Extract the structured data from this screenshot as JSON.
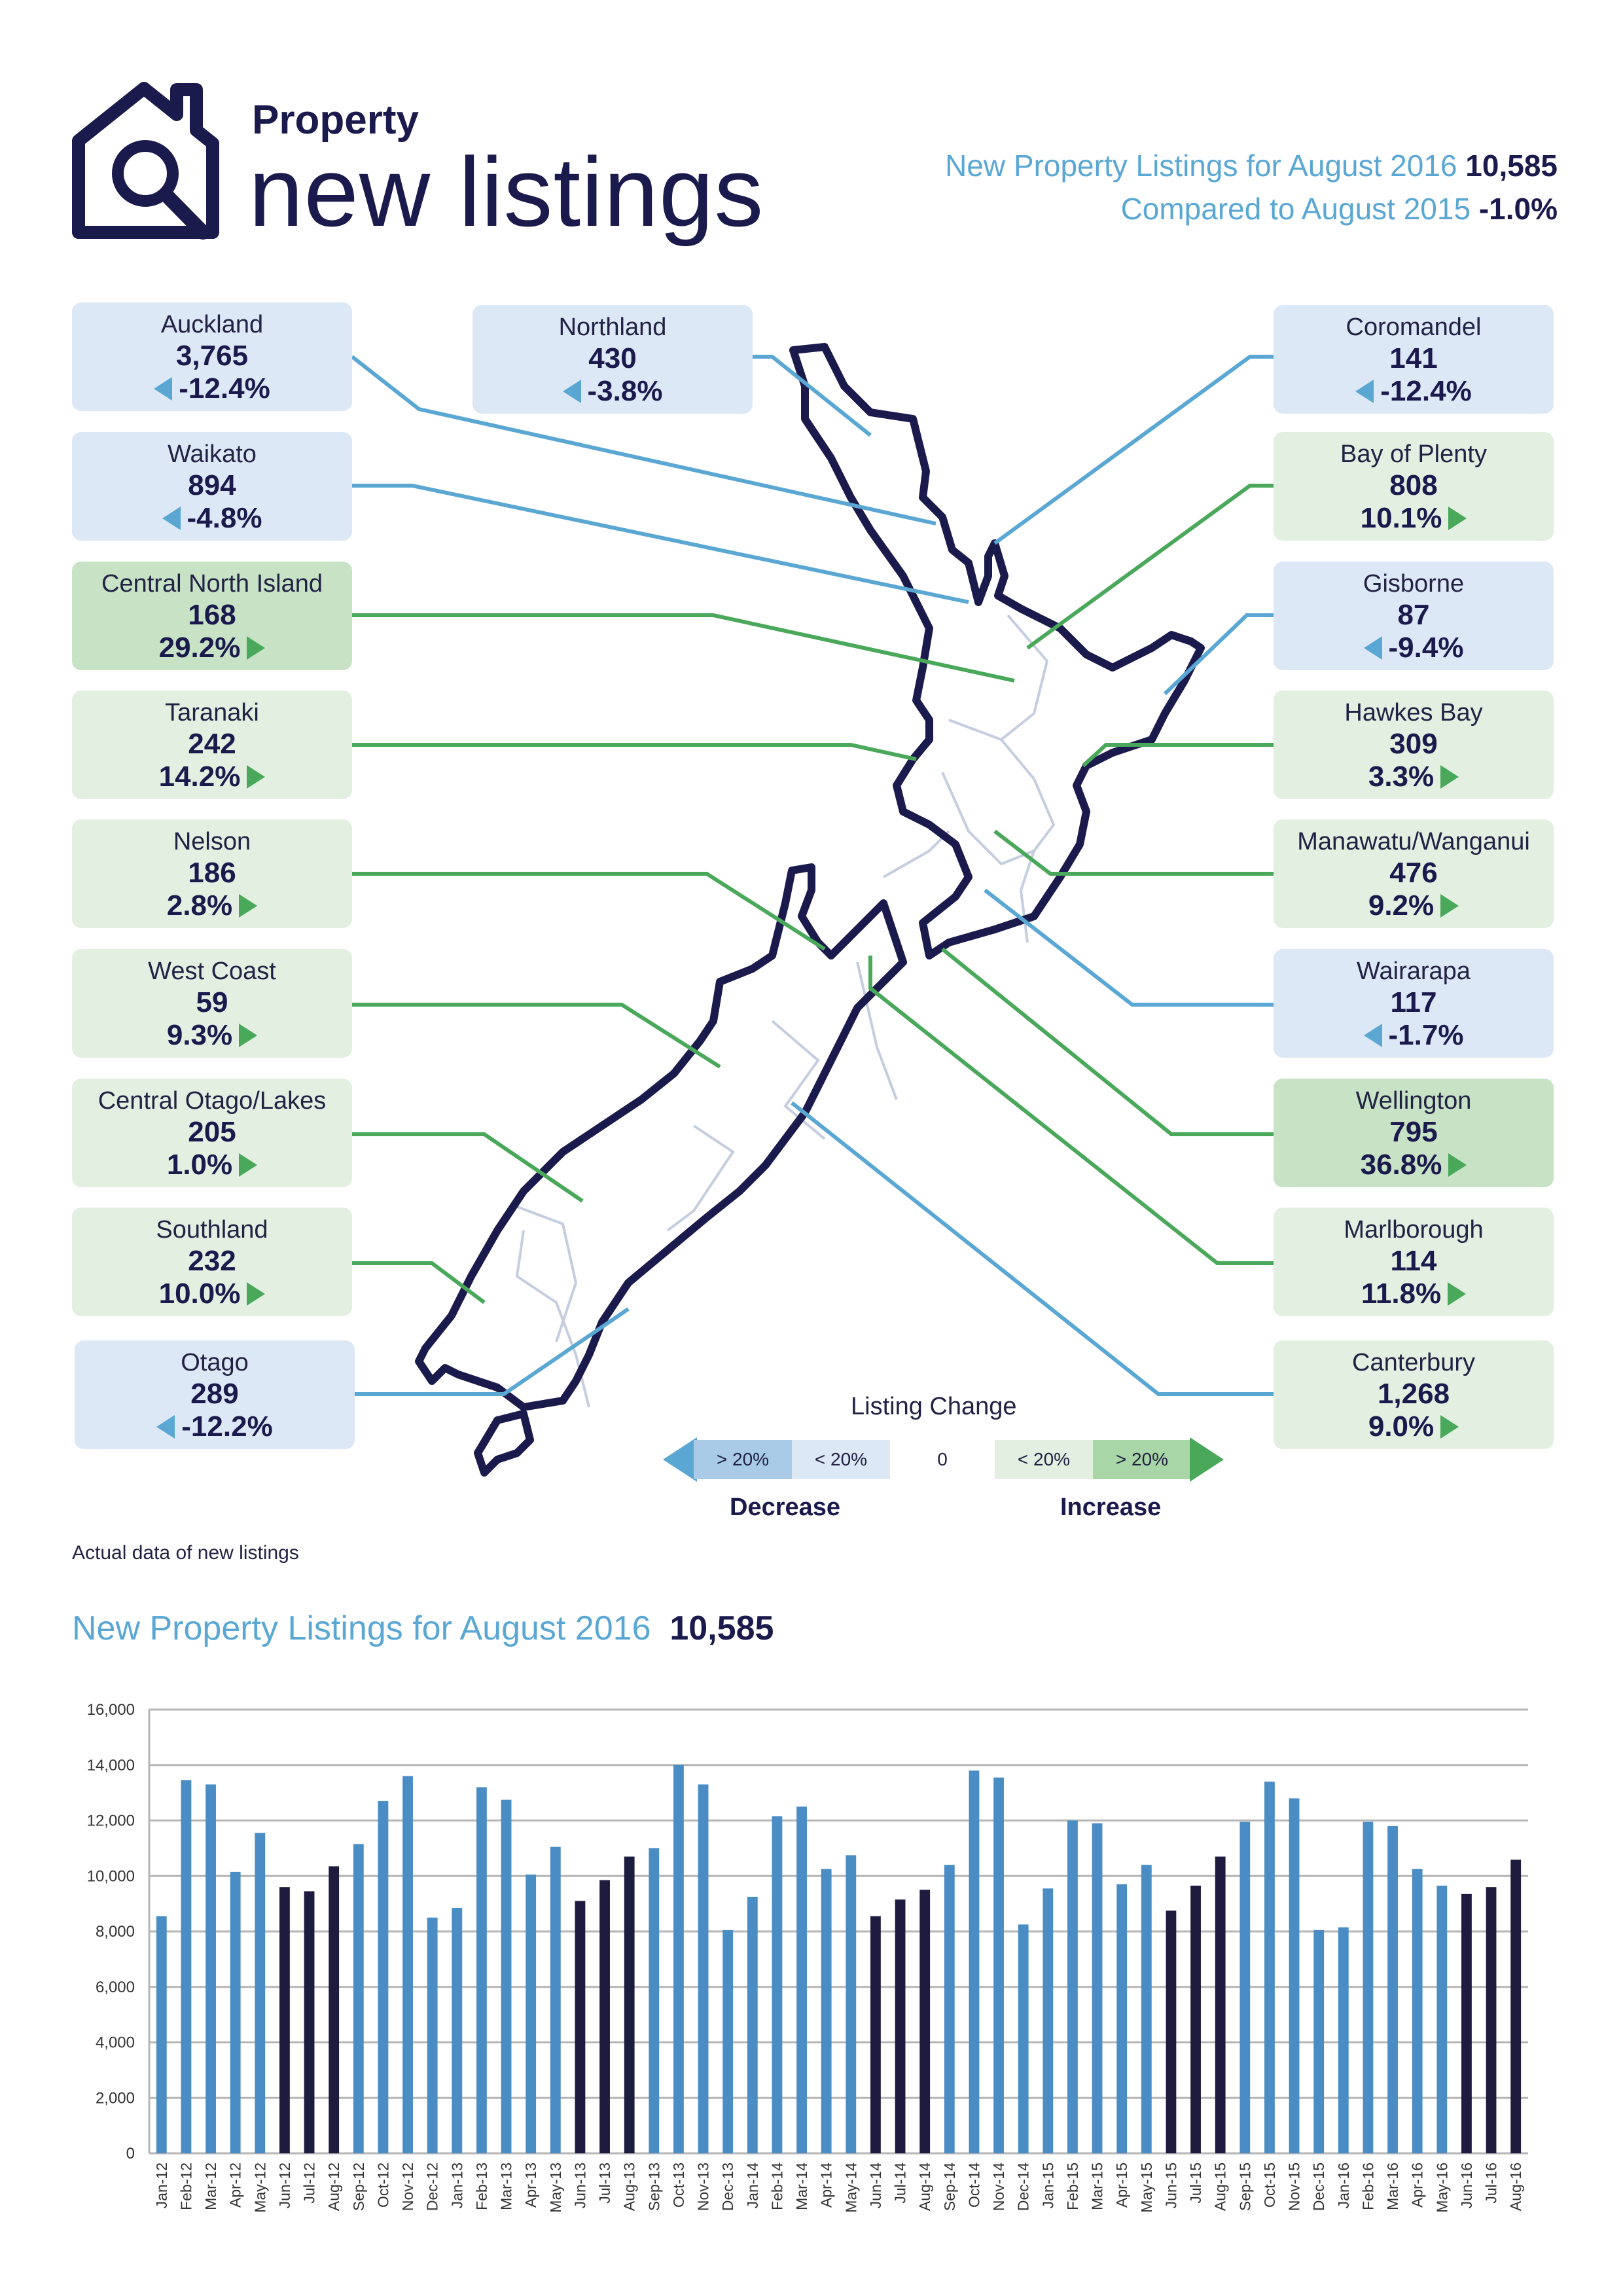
{
  "brand": {
    "small": "Property",
    "big": "new listings"
  },
  "summary": {
    "line1_label": "New Property Listings for August 2016",
    "line1_value": "10,585",
    "line2_label": "Compared to August 2015",
    "line2_value": "-1.0%"
  },
  "regions": [
    {
      "name": "Auckland",
      "value": "3,765",
      "change": "-12.4%",
      "dir": "dec",
      "tone": "dec"
    },
    {
      "name": "Waikato",
      "value": "894",
      "change": "-4.8%",
      "dir": "dec",
      "tone": "dec"
    },
    {
      "name": "Central North Island",
      "value": "168",
      "change": "29.2%",
      "dir": "inc",
      "tone": "inc-strong"
    },
    {
      "name": "Taranaki",
      "value": "242",
      "change": "14.2%",
      "dir": "inc",
      "tone": "inc"
    },
    {
      "name": "Nelson",
      "value": "186",
      "change": "2.8%",
      "dir": "inc",
      "tone": "inc"
    },
    {
      "name": "West Coast",
      "value": "59",
      "change": "9.3%",
      "dir": "inc",
      "tone": "inc"
    },
    {
      "name": "Central Otago/Lakes",
      "value": "205",
      "change": "1.0%",
      "dir": "inc",
      "tone": "inc"
    },
    {
      "name": "Southland",
      "value": "232",
      "change": "10.0%",
      "dir": "inc",
      "tone": "inc"
    },
    {
      "name": "Otago",
      "value": "289",
      "change": "-12.2%",
      "dir": "dec",
      "tone": "dec"
    },
    {
      "name": "Northland",
      "value": "430",
      "change": "-3.8%",
      "dir": "dec",
      "tone": "dec"
    },
    {
      "name": "Coromandel",
      "value": "141",
      "change": "-12.4%",
      "dir": "dec",
      "tone": "dec"
    },
    {
      "name": "Bay of Plenty",
      "value": "808",
      "change": "10.1%",
      "dir": "inc",
      "tone": "inc"
    },
    {
      "name": "Gisborne",
      "value": "87",
      "change": "-9.4%",
      "dir": "dec",
      "tone": "dec"
    },
    {
      "name": "Hawkes Bay",
      "value": "309",
      "change": "3.3%",
      "dir": "inc",
      "tone": "inc"
    },
    {
      "name": "Manawatu/Wanganui",
      "value": "476",
      "change": "9.2%",
      "dir": "inc",
      "tone": "inc"
    },
    {
      "name": "Wairarapa",
      "value": "117",
      "change": "-1.7%",
      "dir": "dec",
      "tone": "dec"
    },
    {
      "name": "Wellington",
      "value": "795",
      "change": "36.8%",
      "dir": "inc",
      "tone": "inc-strong"
    },
    {
      "name": "Marlborough",
      "value": "114",
      "change": "11.8%",
      "dir": "inc",
      "tone": "inc"
    },
    {
      "name": "Canterbury",
      "value": "1,268",
      "change": "9.0%",
      "dir": "inc",
      "tone": "inc"
    }
  ],
  "legend": {
    "title": "Listing Change",
    "dec_strong": "> 20%",
    "dec_weak": "< 20%",
    "zero": "0",
    "inc_weak": "< 20%",
    "inc_strong": "> 20%",
    "dec_label": "Decrease",
    "inc_label": "Increase"
  },
  "note": "Actual data of new listings",
  "chart_title": {
    "label": "New Property Listings for August 2016",
    "value": "10,585"
  },
  "colors": {
    "navy": "#1b1a4d",
    "blue": "#5aa7d4",
    "bar_blue": "#4a8cc4",
    "bar_dark": "#1d1b3e",
    "green": "#4aa85a"
  },
  "chart_data": {
    "type": "bar",
    "title": "New Property Listings for August 2016",
    "ylim": [
      0,
      16000
    ],
    "yticks": [
      "0",
      "2,000",
      "4,000",
      "6,000",
      "8,000",
      "10,000",
      "12,000",
      "14,000",
      "16,000"
    ],
    "categories": [
      "Jan-12",
      "Feb-12",
      "Mar-12",
      "Apr-12",
      "May-12",
      "Jun-12",
      "Jul-12",
      "Aug-12",
      "Sep-12",
      "Oct-12",
      "Nov-12",
      "Dec-12",
      "Jan-13",
      "Feb-13",
      "Mar-13",
      "Apr-13",
      "May-13",
      "Jun-13",
      "Jul-13",
      "Aug-13",
      "Sep-13",
      "Oct-13",
      "Nov-13",
      "Dec-13",
      "Jan-14",
      "Feb-14",
      "Mar-14",
      "Apr-14",
      "May-14",
      "Jun-14",
      "Jul-14",
      "Aug-14",
      "Sep-14",
      "Oct-14",
      "Nov-14",
      "Dec-14",
      "Jan-15",
      "Feb-15",
      "Mar-15",
      "Apr-15",
      "May-15",
      "Jun-15",
      "Jul-15",
      "Aug-15",
      "Sep-15",
      "Oct-15",
      "Nov-15",
      "Dec-15",
      "Jan-16",
      "Feb-16",
      "Mar-16",
      "Apr-16",
      "May-16",
      "Jun-16",
      "Jul-16",
      "Aug-16"
    ],
    "values": [
      8550,
      13450,
      13300,
      10150,
      11550,
      9600,
      9450,
      10350,
      11150,
      12700,
      13600,
      8500,
      8850,
      13200,
      12750,
      10050,
      11050,
      9100,
      9850,
      10700,
      11000,
      14000,
      13300,
      8050,
      9250,
      12150,
      12500,
      10250,
      10750,
      8550,
      9150,
      9500,
      10400,
      13800,
      13550,
      8250,
      9550,
      12000,
      11900,
      9700,
      10400,
      8750,
      9650,
      10700,
      11950,
      13400,
      12800,
      8050,
      8150,
      11950,
      11800,
      10250,
      9650,
      9350,
      9600,
      10585
    ],
    "highlight": [
      false,
      false,
      false,
      false,
      false,
      true,
      true,
      true,
      false,
      false,
      false,
      false,
      false,
      false,
      false,
      false,
      false,
      true,
      true,
      true,
      false,
      false,
      false,
      false,
      false,
      false,
      false,
      false,
      false,
      true,
      true,
      true,
      false,
      false,
      false,
      false,
      false,
      false,
      false,
      false,
      false,
      true,
      true,
      true,
      false,
      false,
      false,
      false,
      false,
      false,
      false,
      false,
      false,
      true,
      true,
      true
    ]
  }
}
